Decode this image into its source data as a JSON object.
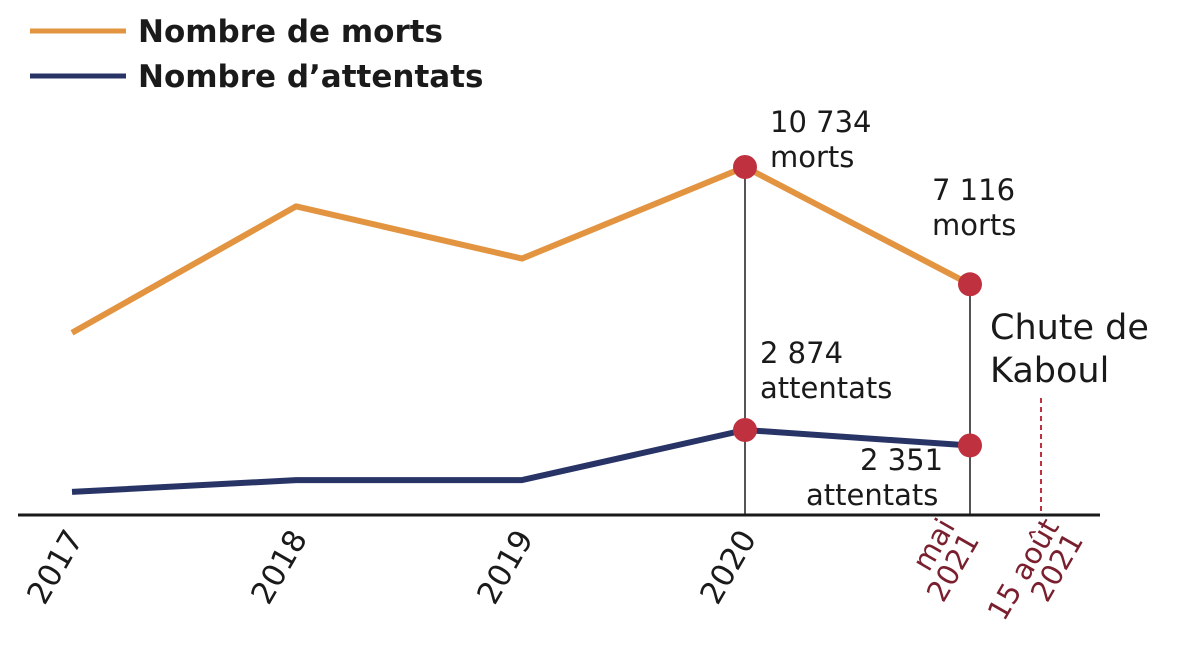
{
  "chart_data": {
    "type": "line",
    "title": "",
    "xlabel": "",
    "ylabel": "",
    "categories": [
      "2017",
      "2018",
      "2019",
      "2020",
      "mai 2021"
    ],
    "category_lines": [
      [
        "2017"
      ],
      [
        "2018"
      ],
      [
        "2019"
      ],
      [
        "2020"
      ],
      [
        "mai",
        "2021"
      ]
    ],
    "series": [
      {
        "name": "Nombre de morts",
        "color": "#E39440",
        "values": [
          5620,
          9520,
          7910,
          10734,
          7116
        ]
      },
      {
        "name": "Nombre d’attentats",
        "color": "#283466",
        "values": [
          780,
          1180,
          1180,
          2874,
          2351
        ]
      }
    ],
    "highlight_color": "#C0313F",
    "annotations": [
      {
        "series": 0,
        "index": 3,
        "lines": [
          "10 734",
          "morts"
        ]
      },
      {
        "series": 0,
        "index": 4,
        "lines": [
          "7 116",
          "morts"
        ]
      },
      {
        "series": 1,
        "index": 3,
        "lines": [
          "2 874",
          "attentats"
        ]
      },
      {
        "series": 1,
        "index": 4,
        "lines": [
          "2 351",
          "attentats"
        ]
      }
    ],
    "event": {
      "label_lines": [
        "Chute de",
        "Kaboul"
      ],
      "tick_lines": [
        "15 août",
        "2021"
      ],
      "color": "#7A1F2E",
      "line_color": "#C0313F"
    },
    "grid": false,
    "legend": "top-left"
  }
}
